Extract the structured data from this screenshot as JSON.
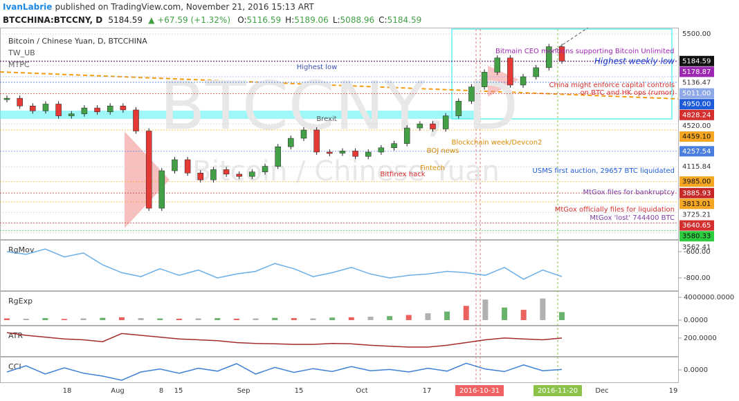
{
  "header": {
    "author": "IvanLabrie",
    "published": "published on TradingView.com, November 21, 2016 15:13 ART",
    "symbol": "BTCCHINA:BTCCNY, D",
    "last": "5184.59",
    "change": "▲ +67.59 (+1.32%)",
    "ohlc": [
      {
        "key": "O:",
        "value": "5116.59"
      },
      {
        "key": "H:",
        "value": "5189.06"
      },
      {
        "key": "L:",
        "value": "5088.96"
      },
      {
        "key": "C:",
        "value": "5184.59"
      }
    ]
  },
  "legend": [
    "Bitcoin / Chinese Yuan, D, BTCCHINA",
    "TW_UB",
    "MTPC"
  ],
  "watermark": [
    "BTCCNY, D",
    "Bitcoin / Chinese Yuan"
  ],
  "chart_data": {
    "type": "candle",
    "log_scale": true,
    "ylim": [
      3519,
      5560
    ],
    "values": [
      4780,
      4700,
      4650,
      4720,
      4600,
      4620,
      4680,
      4640,
      4700,
      4660,
      4450,
      3760,
      4080,
      4180,
      4060,
      4000,
      4090,
      4050,
      4030,
      4070,
      4120,
      4300,
      4380,
      4460,
      4250,
      4240,
      4260,
      4210,
      4250,
      4290,
      4330,
      4480,
      4520,
      4470,
      4600,
      4750,
      4900,
      5060,
      5220,
      4920,
      5010,
      5110,
      5350,
      5184.59
    ],
    "up_color": "#43a047",
    "down_color": "#e53935",
    "yticks": [
      {
        "value": 5500,
        "label": "5500.00",
        "bg": "#ffffff",
        "fg": "#333333"
      },
      {
        "value": 5184.59,
        "label": "5184.59",
        "bg": "#111111",
        "fg": "#ffffff"
      },
      {
        "value": 5178.87,
        "label": "5178.87",
        "bg": "#9c27b0",
        "fg": "#ffffff"
      },
      {
        "value": 5136.47,
        "label": "5136.47",
        "bg": "#ffffff",
        "fg": "#333333"
      },
      {
        "value": 5011,
        "label": "5011.00",
        "bg": "#8fa8e8",
        "fg": "#ffffff"
      },
      {
        "value": 4950,
        "label": "4950.00",
        "bg": "#1e5bd8",
        "fg": "#ffffff"
      },
      {
        "value": 4828.24,
        "label": "4828.24",
        "bg": "#d32f2f",
        "fg": "#ffffff"
      },
      {
        "value": 4520,
        "label": "4520.00",
        "bg": "#ffffff",
        "fg": "#333333"
      },
      {
        "value": 4459.1,
        "label": "4459.10",
        "bg": "#f5a623",
        "fg": "#111111"
      },
      {
        "value": 4257.54,
        "label": "4257.54",
        "bg": "#4a7fe0",
        "fg": "#ffffff"
      },
      {
        "value": 4115.84,
        "label": "4115.84",
        "bg": "#ffffff",
        "fg": "#333333"
      },
      {
        "value": 3985,
        "label": "3985.00",
        "bg": "#f5a623",
        "fg": "#111111"
      },
      {
        "value": 3885.93,
        "label": "3885.93",
        "bg": "#c62828",
        "fg": "#ffffff"
      },
      {
        "value": 3813.01,
        "label": "3813.01",
        "bg": "#f5a623",
        "fg": "#111111"
      },
      {
        "value": 3725.21,
        "label": "3725.21",
        "bg": "#ffffff",
        "fg": "#333333"
      },
      {
        "value": 3640.65,
        "label": "3640.65",
        "bg": "#d32f2f",
        "fg": "#ffffff"
      },
      {
        "value": 3580.33,
        "label": "3580.33",
        "bg": "#2ecc40",
        "fg": "#111111"
      },
      {
        "value": 3562.41,
        "label": "3562.41",
        "bg": "#ffffff",
        "fg": "#333333"
      }
    ]
  },
  "annotations": [
    {
      "text": "Highest low",
      "color": "#3f51b5"
    },
    {
      "text": "Bitmain CEO mentions supporting Bitcoin Unlimited",
      "color": "#9c27b0"
    },
    {
      "text": "Highest weekly low",
      "color": "#1e40d8"
    },
    {
      "text": "China might enforce capital controls",
      "color": "#d32f2f"
    },
    {
      "text": "on BTC and HK ops (rumor)",
      "color": "#d32f2f"
    },
    {
      "text": "Brexit",
      "color": "#555555"
    },
    {
      "text": "Blockchain week/Devcon2",
      "color": "#d88b00"
    },
    {
      "text": "BOJ news",
      "color": "#d88b00"
    },
    {
      "text": "USMS first auction, 29657 BTC liquidated",
      "color": "#1e5bd8"
    },
    {
      "text": "Fintech",
      "color": "#d88b00"
    },
    {
      "text": "Bitfinex hack",
      "color": "#d32f2f"
    },
    {
      "text": "MtGox files for bankruptcy",
      "color": "#7b3fa0"
    },
    {
      "text": "MtGox officially files for liquidation",
      "color": "#d32f2f"
    },
    {
      "text": "MtGox 'lost' 744400 BTC",
      "color": "#7b3fa0"
    }
  ],
  "panels": [
    {
      "name": "RgMov",
      "kind": "line",
      "color": "#6aaee8",
      "ylim": [
        -895,
        -516
      ],
      "yticks": [
        {
          "value": -600,
          "label": "-600.00"
        },
        {
          "value": -800,
          "label": "-800.00"
        }
      ],
      "values": [
        -600,
        -620,
        -580,
        -640,
        -610,
        -700,
        -760,
        -790,
        -730,
        -780,
        -740,
        -800,
        -770,
        -750,
        -690,
        -730,
        -790,
        -760,
        -720,
        -770,
        -800,
        -780,
        -770,
        -750,
        -760,
        -780,
        -720,
        -810,
        -740,
        -790
      ]
    },
    {
      "name": "RgExp",
      "kind": "bars",
      "color": "#9e9e9e",
      "ylim": [
        -850000,
        4970000
      ],
      "yticks": [
        {
          "value": 4000000,
          "label": "4000000.0000"
        },
        {
          "value": 0,
          "label": "0.0000"
        }
      ],
      "values": [
        300000,
        250000,
        350000,
        200000,
        300000,
        400000,
        500000,
        350000,
        300000,
        250000,
        300000,
        350000,
        250000,
        300000,
        400000,
        350000,
        300000,
        450000,
        500000,
        600000,
        700000,
        900000,
        1200000,
        1500000,
        2500000,
        3600000,
        2200000,
        1800000,
        3800000,
        1400000
      ]
    },
    {
      "name": "ATR",
      "kind": "line",
      "color": "#a52a2a",
      "ylim": [
        100,
        265
      ],
      "yticks": [
        {
          "value": 200,
          "label": "200.0000"
        }
      ],
      "values": [
        230,
        215,
        205,
        195,
        190,
        180,
        225,
        215,
        205,
        195,
        190,
        185,
        175,
        170,
        168,
        165,
        165,
        170,
        168,
        160,
        155,
        150,
        150,
        160,
        175,
        190,
        200,
        195,
        190,
        200
      ]
    },
    {
      "name": "CCI",
      "kind": "line",
      "color": "#3d7fd6",
      "ylim": [
        -300,
        300
      ],
      "yticks": [
        {
          "value": 0,
          "label": "0.0000"
        }
      ],
      "values": [
        -50,
        100,
        -100,
        50,
        -80,
        -150,
        -250,
        -50,
        20,
        -80,
        40,
        -30,
        150,
        -100,
        60,
        -60,
        30,
        -40,
        80,
        -20,
        10,
        -50,
        40,
        -30,
        160,
        20,
        -40,
        120,
        -20,
        10
      ]
    }
  ],
  "x_labels": [
    {
      "text": "18",
      "style": "plain"
    },
    {
      "text": "Aug",
      "style": "plain"
    },
    {
      "text": "8",
      "style": "plain"
    },
    {
      "text": "15",
      "style": "plain"
    },
    {
      "text": "Sep",
      "style": "plain"
    },
    {
      "text": "15",
      "style": "plain"
    },
    {
      "text": "Oct",
      "style": "plain"
    },
    {
      "text": "17",
      "style": "plain"
    },
    {
      "text": "2016-10-31",
      "style": "red"
    },
    {
      "text": "2016-11-20",
      "style": "green"
    },
    {
      "text": "Dec",
      "style": "plain"
    },
    {
      "text": "19",
      "style": "plain"
    }
  ]
}
